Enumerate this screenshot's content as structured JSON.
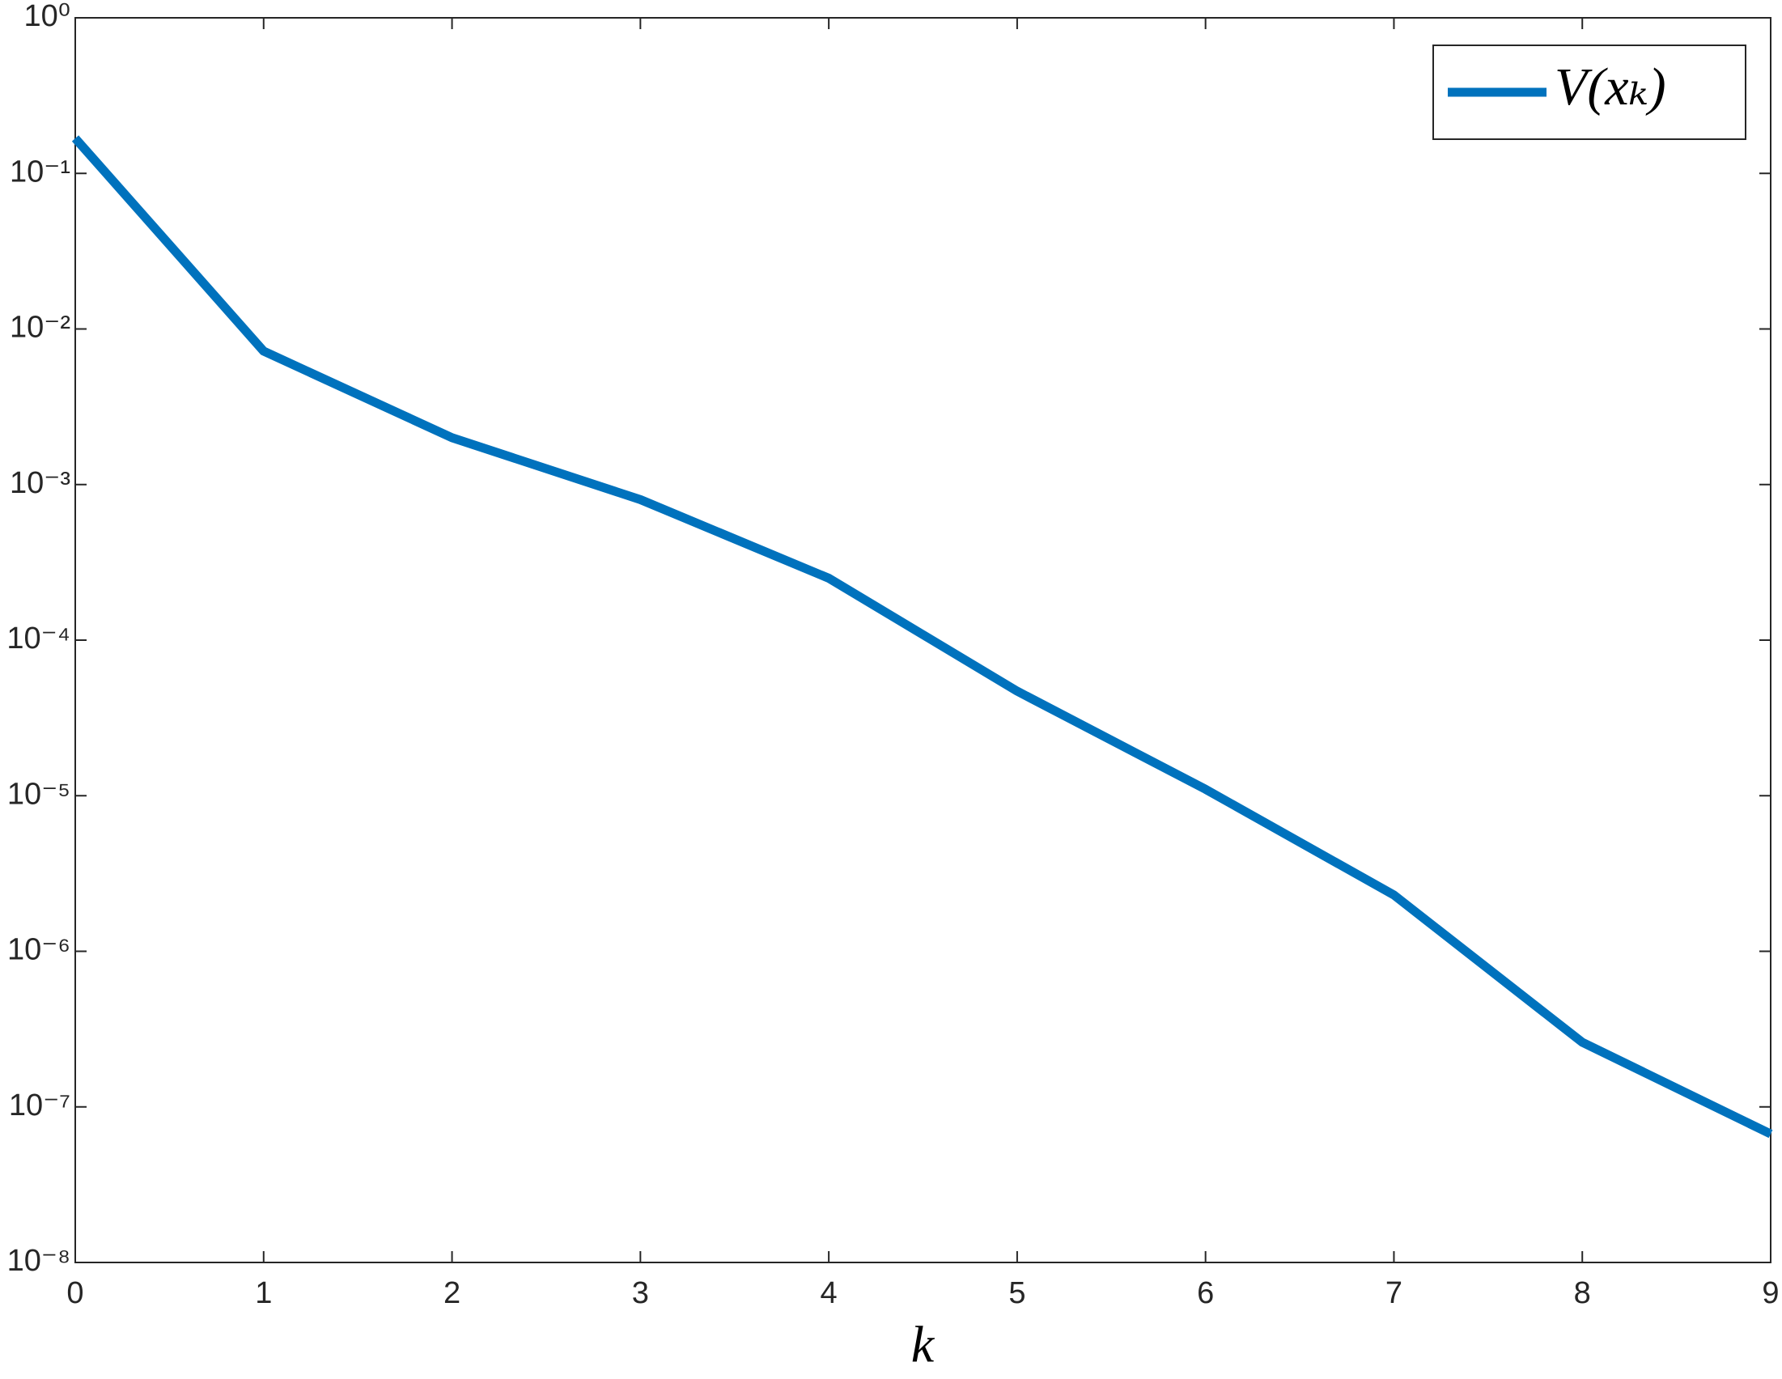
{
  "chart_data": {
    "type": "line",
    "xlabel": "k",
    "x": [
      0,
      1,
      2,
      3,
      4,
      5,
      6,
      7,
      8,
      9
    ],
    "series": [
      {
        "name": "V(xₖ)",
        "color": "#0072bd",
        "values": [
          0.168,
          0.0072,
          0.002,
          0.0008,
          0.00025,
          4.7e-05,
          1.1e-05,
          2.3e-06,
          2.6e-07,
          6.7e-08
        ]
      }
    ],
    "xlim": [
      0,
      9
    ],
    "xticks": [
      0,
      1,
      2,
      3,
      4,
      5,
      6,
      7,
      8,
      9
    ],
    "ylim": [
      1e-08,
      1
    ],
    "log_y": true,
    "yticks": [
      {
        "value": 1e-08,
        "label": "10⁻⁸"
      },
      {
        "value": 1e-07,
        "label": "10⁻⁷"
      },
      {
        "value": 1e-06,
        "label": "10⁻⁶"
      },
      {
        "value": 1e-05,
        "label": "10⁻⁵"
      },
      {
        "value": 0.0001,
        "label": "10⁻⁴"
      },
      {
        "value": 0.001,
        "label": "10⁻³"
      },
      {
        "value": 0.01,
        "label": "10⁻²"
      },
      {
        "value": 0.1,
        "label": "10⁻¹"
      },
      {
        "value": 1,
        "label": "10⁰"
      }
    ],
    "grid": false,
    "legend": "top-right"
  }
}
